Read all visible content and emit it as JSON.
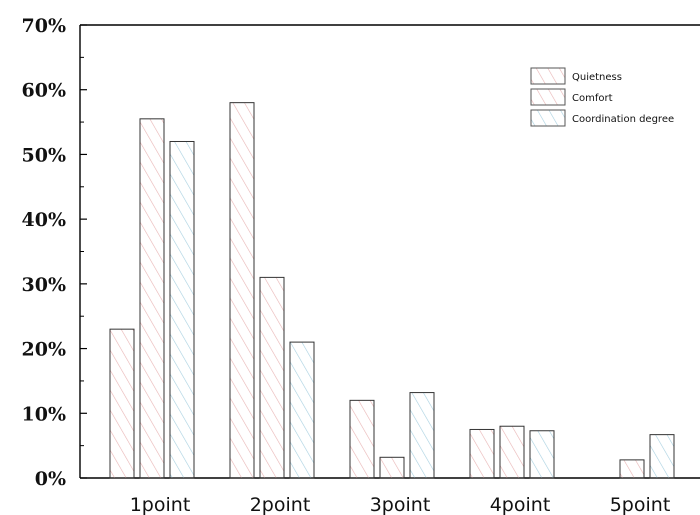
{
  "chart_data": {
    "type": "bar",
    "title": "",
    "xlabel": "",
    "ylabel": "",
    "categories": [
      "1point",
      "2point",
      "3point",
      "4point",
      "5point"
    ],
    "series": [
      {
        "name": "Quietness",
        "values": [
          23,
          58,
          12,
          7.5,
          0
        ],
        "color": "#e8a8a8",
        "hatch": "forward-diagonal"
      },
      {
        "name": "Comfort",
        "values": [
          55.5,
          31,
          3.2,
          8,
          2.8
        ],
        "color": "#e8a8a8",
        "hatch": "forward-diagonal"
      },
      {
        "name": "Coordination degree",
        "values": [
          52,
          21,
          13.2,
          7.3,
          6.7
        ],
        "color": "#a8d0e0",
        "hatch": "forward-diagonal"
      }
    ],
    "yticks": [
      "0%",
      "10%",
      "20%",
      "30%",
      "40%",
      "50%",
      "60%",
      "70%"
    ],
    "ylim": [
      0,
      70
    ],
    "grid": false,
    "legend_position": "top-right"
  }
}
